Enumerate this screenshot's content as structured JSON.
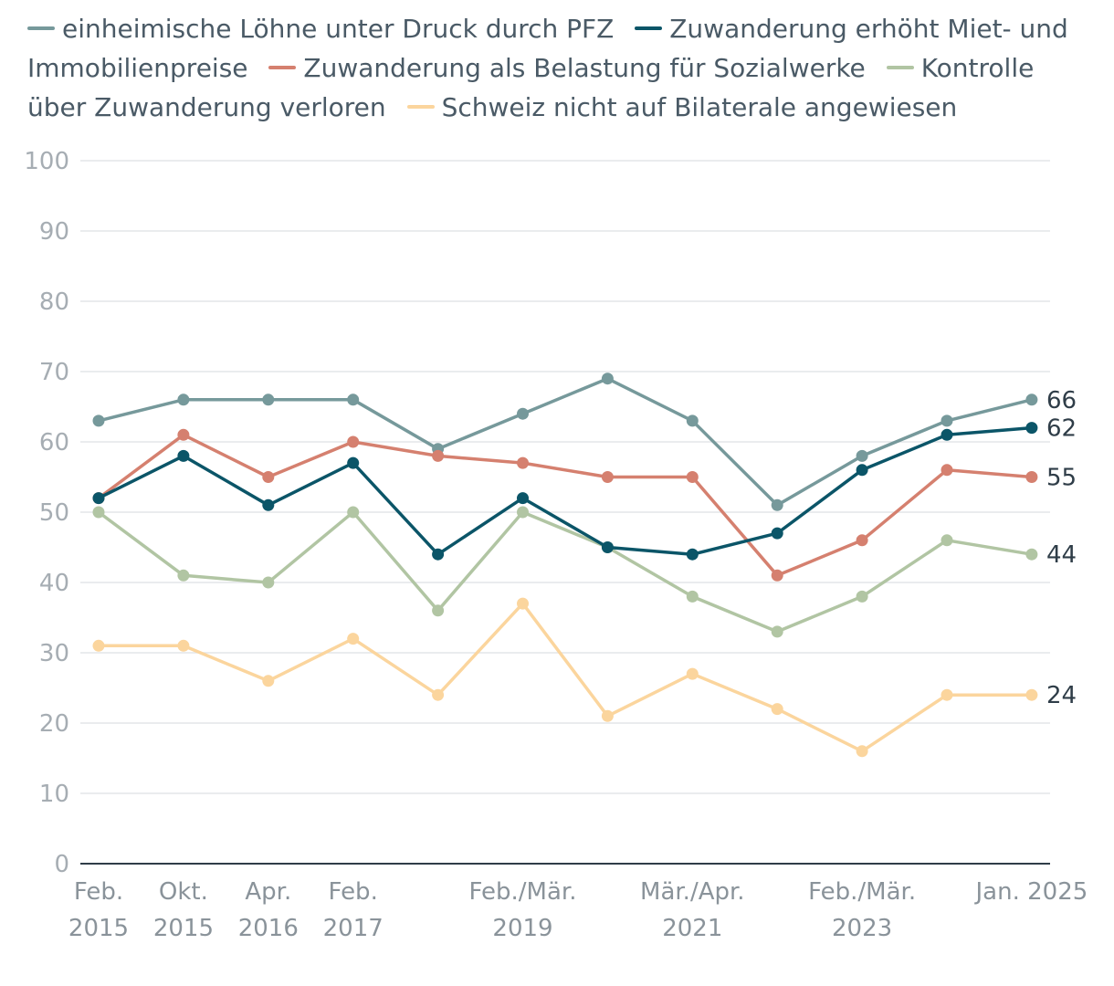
{
  "chart_data": {
    "type": "line",
    "title": "",
    "xlabel": "",
    "ylabel": "",
    "ylim": [
      0,
      100
    ],
    "yticks": [
      0,
      10,
      20,
      30,
      40,
      50,
      60,
      70,
      80,
      90,
      100
    ],
    "grid": true,
    "legend_position": "top",
    "x_points": 12,
    "x_tick_labels": [
      {
        "index": 0,
        "lines": [
          "Feb.",
          "2015"
        ]
      },
      {
        "index": 1,
        "lines": [
          "Okt.",
          "2015"
        ]
      },
      {
        "index": 2,
        "lines": [
          "Apr.",
          "2016"
        ]
      },
      {
        "index": 3,
        "lines": [
          "Feb.",
          "2017"
        ]
      },
      {
        "index": 5,
        "lines": [
          "Feb./Mär.",
          "2019"
        ]
      },
      {
        "index": 7,
        "lines": [
          "Mär./Apr.",
          "2021"
        ]
      },
      {
        "index": 9,
        "lines": [
          "Feb./Mär.",
          "2023"
        ]
      },
      {
        "index": 11,
        "lines": [
          "Jan. 2025"
        ]
      }
    ],
    "series": [
      {
        "name": "einheimische Löhne unter Druck durch PFZ",
        "color": "#76999b",
        "values": [
          63,
          66,
          66,
          66,
          59,
          64,
          69,
          63,
          51,
          58,
          63,
          66
        ],
        "end_label": "66"
      },
      {
        "name": "Zuwanderung erhöht Miet- und Immobilienpreise",
        "color": "#0b5568",
        "values": [
          52,
          58,
          51,
          57,
          44,
          52,
          45,
          44,
          47,
          56,
          61,
          62
        ],
        "end_label": "62"
      },
      {
        "name": "Zuwanderung als Belastung für Sozialwerke",
        "color": "#d5806f",
        "values": [
          52,
          61,
          55,
          60,
          58,
          57,
          55,
          55,
          41,
          46,
          56,
          55
        ],
        "end_label": "55"
      },
      {
        "name": "Kontrolle über Zuwanderung verloren",
        "color": "#b1c5a3",
        "values": [
          50,
          41,
          40,
          50,
          36,
          50,
          45,
          38,
          33,
          38,
          46,
          44
        ],
        "end_label": "44"
      },
      {
        "name": "Schweiz nicht auf Bilaterale angewiesen",
        "color": "#fbd59d",
        "values": [
          31,
          31,
          26,
          32,
          24,
          37,
          21,
          27,
          22,
          16,
          24,
          24
        ],
        "end_label": "24"
      }
    ]
  }
}
